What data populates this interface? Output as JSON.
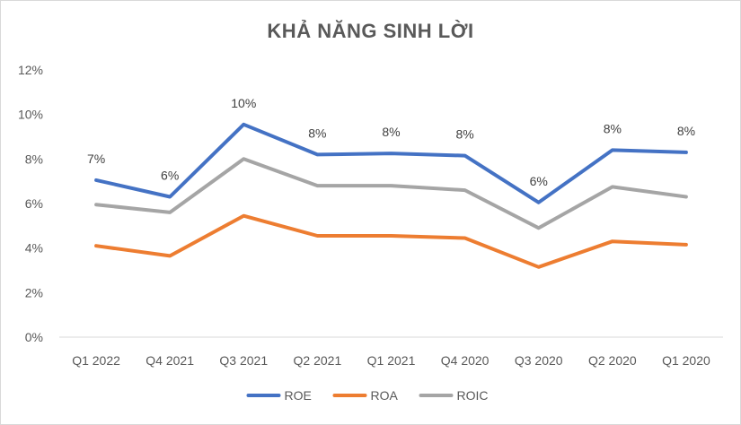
{
  "chart_data": {
    "type": "line",
    "title": "KHẢ NĂNG SINH LỜI",
    "xlabel": "",
    "ylabel": "",
    "categories": [
      "Q1 2022",
      "Q4 2021",
      "Q3 2021",
      "Q2 2021",
      "Q1 2021",
      "Q4 2020",
      "Q3 2020",
      "Q2 2020",
      "Q1 2020"
    ],
    "ylim": [
      0,
      12
    ],
    "yticks": [
      "0%",
      "2%",
      "4%",
      "6%",
      "8%",
      "10%",
      "12%"
    ],
    "grid": false,
    "legend_position": "bottom",
    "series": [
      {
        "name": "ROE",
        "color": "#4472c4",
        "values": [
          7.05,
          6.3,
          9.55,
          8.2,
          8.25,
          8.15,
          6.05,
          8.4,
          8.3
        ],
        "data_labels": [
          "7%",
          "6%",
          "10%",
          "8%",
          "8%",
          "8%",
          "6%",
          "8%",
          "8%"
        ]
      },
      {
        "name": "ROA",
        "color": "#ed7d31",
        "values": [
          4.1,
          3.65,
          5.45,
          4.55,
          4.55,
          4.45,
          3.15,
          4.3,
          4.15
        ]
      },
      {
        "name": "ROIC",
        "color": "#a5a5a5",
        "values": [
          5.95,
          5.6,
          8.0,
          6.8,
          6.8,
          6.6,
          4.9,
          6.75,
          6.3
        ]
      }
    ]
  }
}
